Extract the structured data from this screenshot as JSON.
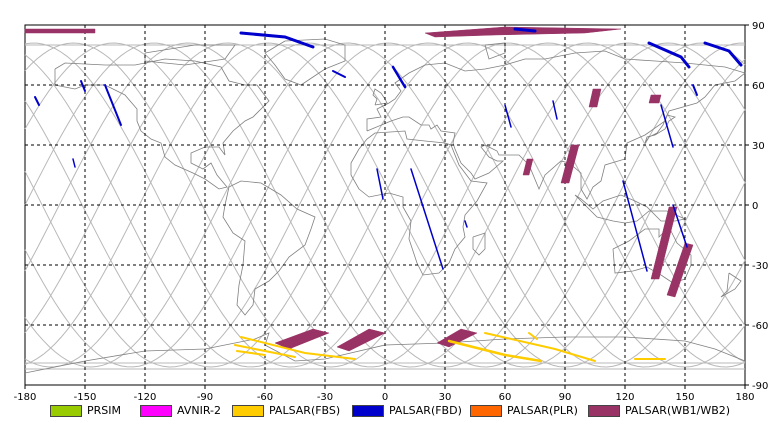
{
  "map": {
    "lon_ticks": [
      "-180",
      "-150",
      "-120",
      "-90",
      "-60",
      "-30",
      "0",
      "30",
      "60",
      "90",
      "120",
      "150",
      "180"
    ],
    "lat_ticks": [
      "90",
      "60",
      "30",
      "0",
      "-30",
      "-60",
      "-90"
    ],
    "grid": "dashed"
  },
  "legend": [
    {
      "label": "PRSIM",
      "color": "#99cc00"
    },
    {
      "label": "AVNIR-2",
      "color": "#ff00ff"
    },
    {
      "label": "PALSAR(FBS)",
      "color": "#ffcc00"
    },
    {
      "label": "PALSAR(FBD)",
      "color": "#0000cc"
    },
    {
      "label": "PALSAR(PLR)",
      "color": "#ff6600"
    },
    {
      "label": "PALSAR(WB1/WB2)",
      "color": "#993366"
    }
  ]
}
